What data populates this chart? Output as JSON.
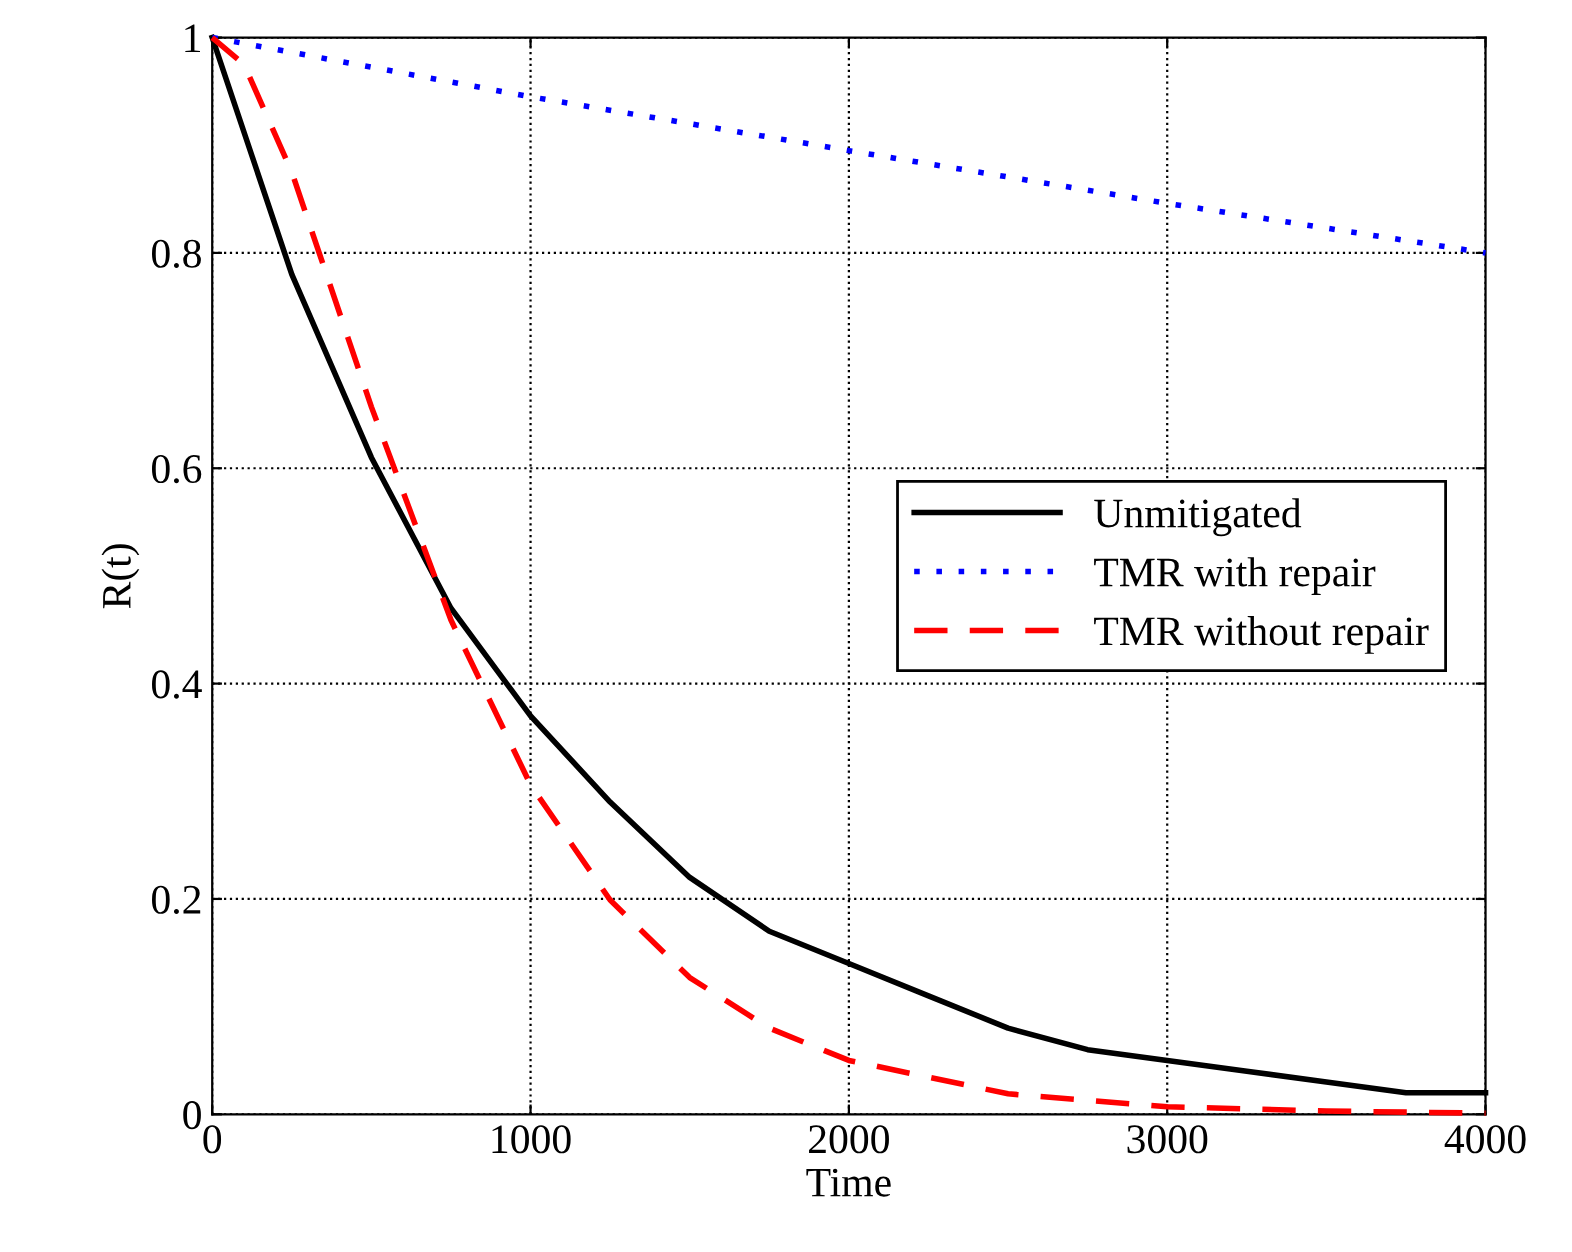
{
  "chart_data": {
    "type": "line",
    "xlabel": "Time",
    "ylabel": "R(t)",
    "xlim": [
      0,
      4000
    ],
    "ylim": [
      0,
      1
    ],
    "xticks": [
      0,
      1000,
      2000,
      3000,
      4000
    ],
    "yticks": [
      0,
      0.2,
      0.4,
      0.6,
      0.8,
      1
    ],
    "grid": true,
    "legend": "right",
    "series": [
      {
        "name": "Unmitigated",
        "color": "#000000",
        "line_style": "solid",
        "x": [
          0,
          250,
          500,
          750,
          1000,
          1250,
          1500,
          1750,
          2000,
          2250,
          2500,
          2750,
          3000,
          3250,
          3500,
          3750,
          4000
        ],
        "values": [
          1,
          0.78,
          0.61,
          0.47,
          0.37,
          0.29,
          0.22,
          0.17,
          0.14,
          0.11,
          0.08,
          0.06,
          0.05,
          0.04,
          0.03,
          0.02,
          0.02
        ]
      },
      {
        "name": "TMR with repair",
        "color": "#0000ff",
        "line_style": "dotted",
        "x": [
          0,
          1000,
          2000,
          3000,
          4000
        ],
        "values": [
          1,
          0.945,
          0.895,
          0.846,
          0.8
        ]
      },
      {
        "name": "TMR without repair",
        "color": "#ff0000",
        "line_style": "dashed",
        "x": [
          0,
          100,
          250,
          500,
          750,
          1000,
          1250,
          1500,
          1750,
          2000,
          2500,
          3000,
          3500,
          4000
        ],
        "values": [
          1,
          0.975,
          0.875,
          0.657,
          0.459,
          0.306,
          0.199,
          0.127,
          0.08,
          0.05,
          0.019,
          0.007,
          0.003,
          0.001
        ]
      }
    ]
  }
}
